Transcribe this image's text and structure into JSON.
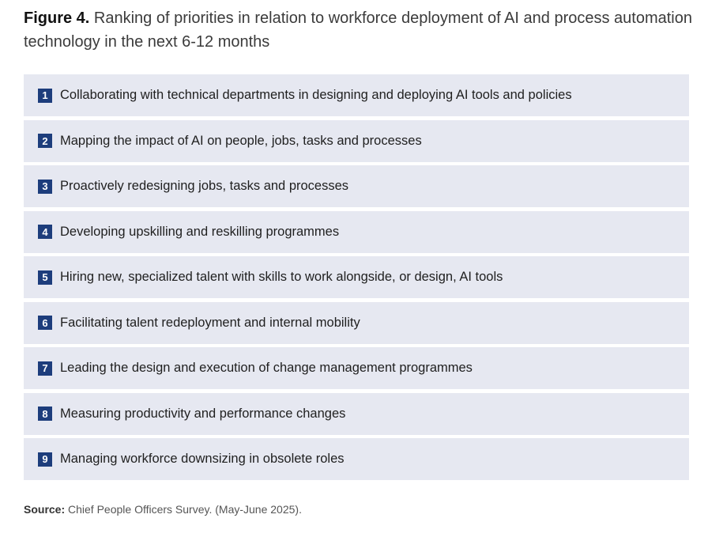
{
  "figure": {
    "label": "Figure 4.",
    "title": "Ranking of priorities in relation to workforce deployment of AI and process automation technology in the next 6-12 months"
  },
  "rankings": [
    {
      "rank": "1",
      "label": "Collaborating with technical departments in designing and deploying AI tools and policies"
    },
    {
      "rank": "2",
      "label": "Mapping the impact of AI on people, jobs, tasks and processes"
    },
    {
      "rank": "3",
      "label": "Proactively redesigning jobs, tasks and processes"
    },
    {
      "rank": "4",
      "label": "Developing upskilling and reskilling programmes"
    },
    {
      "rank": "5",
      "label": "Hiring new, specialized talent with skills to work alongside, or design, AI tools"
    },
    {
      "rank": "6",
      "label": "Facilitating talent redeployment and internal mobility"
    },
    {
      "rank": "7",
      "label": "Leading the design and execution of change management programmes"
    },
    {
      "rank": "8",
      "label": "Measuring productivity and performance changes"
    },
    {
      "rank": "9",
      "label": "Managing workforce downsizing in obsolete roles"
    }
  ],
  "source": {
    "label": "Source:",
    "text": "Chief People Officers Survey. (May-June 2025)."
  },
  "colors": {
    "badge": "#1d3d7c",
    "row_background": "#e6e8f1"
  }
}
